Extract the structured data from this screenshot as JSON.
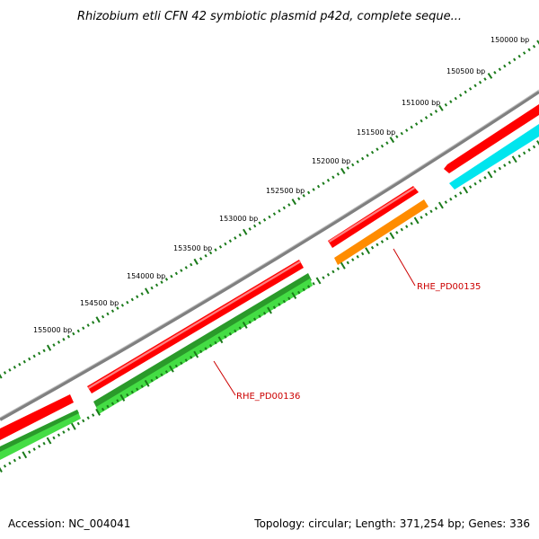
{
  "title": "Rhizobium etli CFN 42 symbiotic plasmid p42d, complete seque...",
  "ticks": [
    {
      "label": "150000 bp"
    },
    {
      "label": "150500 bp"
    },
    {
      "label": "151000 bp"
    },
    {
      "label": "151500 bp"
    },
    {
      "label": "152000 bp"
    },
    {
      "label": "152500 bp"
    },
    {
      "label": "153000 bp"
    },
    {
      "label": "153500 bp"
    },
    {
      "label": "154000 bp"
    },
    {
      "label": "154500 bp"
    },
    {
      "label": "155000 bp"
    }
  ],
  "genes": [
    {
      "label": "RHE_PD00135",
      "color": "#ff8c00"
    },
    {
      "label": "RHE_PD00136",
      "color": "#2a9a2a"
    }
  ],
  "footer": {
    "accession": "Accession: NC_004041",
    "summary": "Topology: circular; Length: 371,254 bp; Genes: 336"
  },
  "colors": {
    "backbone": "#808080",
    "cog_red": "#ff0000",
    "cyan": "#00e5ee",
    "orange": "#ff8c00",
    "dark_green": "#2a9a2a",
    "light_green": "#44dd44",
    "tick_green": "#1a7a1a"
  }
}
